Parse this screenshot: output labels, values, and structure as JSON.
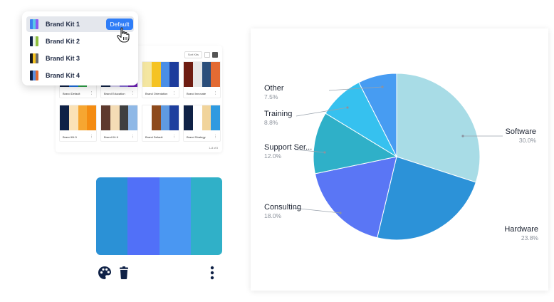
{
  "gallery": {
    "sort_label": "Sort Kits",
    "pagination": "1–8 of 8",
    "kits": [
      {
        "name": "Brand Default",
        "colors": [
          "#0f2146",
          "#1e6fe0",
          "#2c9f46",
          "#ffffff"
        ]
      },
      {
        "name": "Brand Education",
        "colors": [
          "#0f2146",
          "#d6d0f2",
          "#8a6ed9",
          "#6b1fb3"
        ]
      },
      {
        "name": "Brand Orientation",
        "colors": [
          "#f4e6a1",
          "#f5c323",
          "#4a8ee6",
          "#1d3c9c"
        ]
      },
      {
        "name": "Brand Innovate",
        "colors": [
          "#6e1d12",
          "#e7e7e7",
          "#2b4e7a",
          "#e36b33"
        ]
      },
      {
        "name": "Brand Kit 5",
        "colors": [
          "#0f2146",
          "#fbe2b6",
          "#f6a631",
          "#f48c12"
        ]
      },
      {
        "name": "Brand Kit 6",
        "colors": [
          "#5e3a2e",
          "#f4dcb5",
          "#3f3f3f",
          "#8fb8e6"
        ]
      },
      {
        "name": "Brand Default",
        "colors": [
          "#ffffff",
          "#8e4a1c",
          "#5f9ae0",
          "#1e3f9e"
        ]
      },
      {
        "name": "Brand Strategy",
        "colors": [
          "#0f2146",
          "#ffffff",
          "#f1d49b",
          "#2f9ae0"
        ]
      }
    ]
  },
  "dropdown": {
    "items": [
      {
        "label": "Brand Kit 1",
        "colors": [
          "#3d7ff0",
          "#5ac8e8",
          "#8a5cf0"
        ]
      },
      {
        "label": "Brand Kit 2",
        "colors": [
          "#0f2146",
          "#e8f0ea",
          "#8fbf3f"
        ]
      },
      {
        "label": "Brand Kit 3",
        "colors": [
          "#1a1a1a",
          "#f5c323",
          "#6a6a6a"
        ]
      },
      {
        "label": "Brand Kit 4",
        "colors": [
          "#0f2146",
          "#5b8fe0",
          "#e36b33"
        ]
      }
    ],
    "default_label": "Default"
  },
  "palette": {
    "colors": [
      "#2b91d6",
      "#5170f8",
      "#4a97f2",
      "#30b0c8"
    ],
    "icons": [
      "palette-icon",
      "trash-icon",
      "more-vertical-icon"
    ]
  },
  "chart_data": {
    "type": "pie",
    "title": "",
    "slices": [
      {
        "label": "Software",
        "value": 30.0,
        "value_label": "30.0%",
        "color": "#a8dce6"
      },
      {
        "label": "Hardware",
        "value": 23.8,
        "value_label": "23.8%",
        "color": "#2c92d8"
      },
      {
        "label": "Consulting",
        "value": 18.0,
        "value_label": "18.0%",
        "color": "#5a76f5"
      },
      {
        "label": "Support Ser...",
        "value": 12.0,
        "value_label": "12.0%",
        "color": "#2fb0c8"
      },
      {
        "label": "Training",
        "value": 8.8,
        "value_label": "8.8%",
        "color": "#36c1ef"
      },
      {
        "label": "Other",
        "value": 7.5,
        "value_label": "7.5%",
        "color": "#479cf2"
      }
    ]
  }
}
